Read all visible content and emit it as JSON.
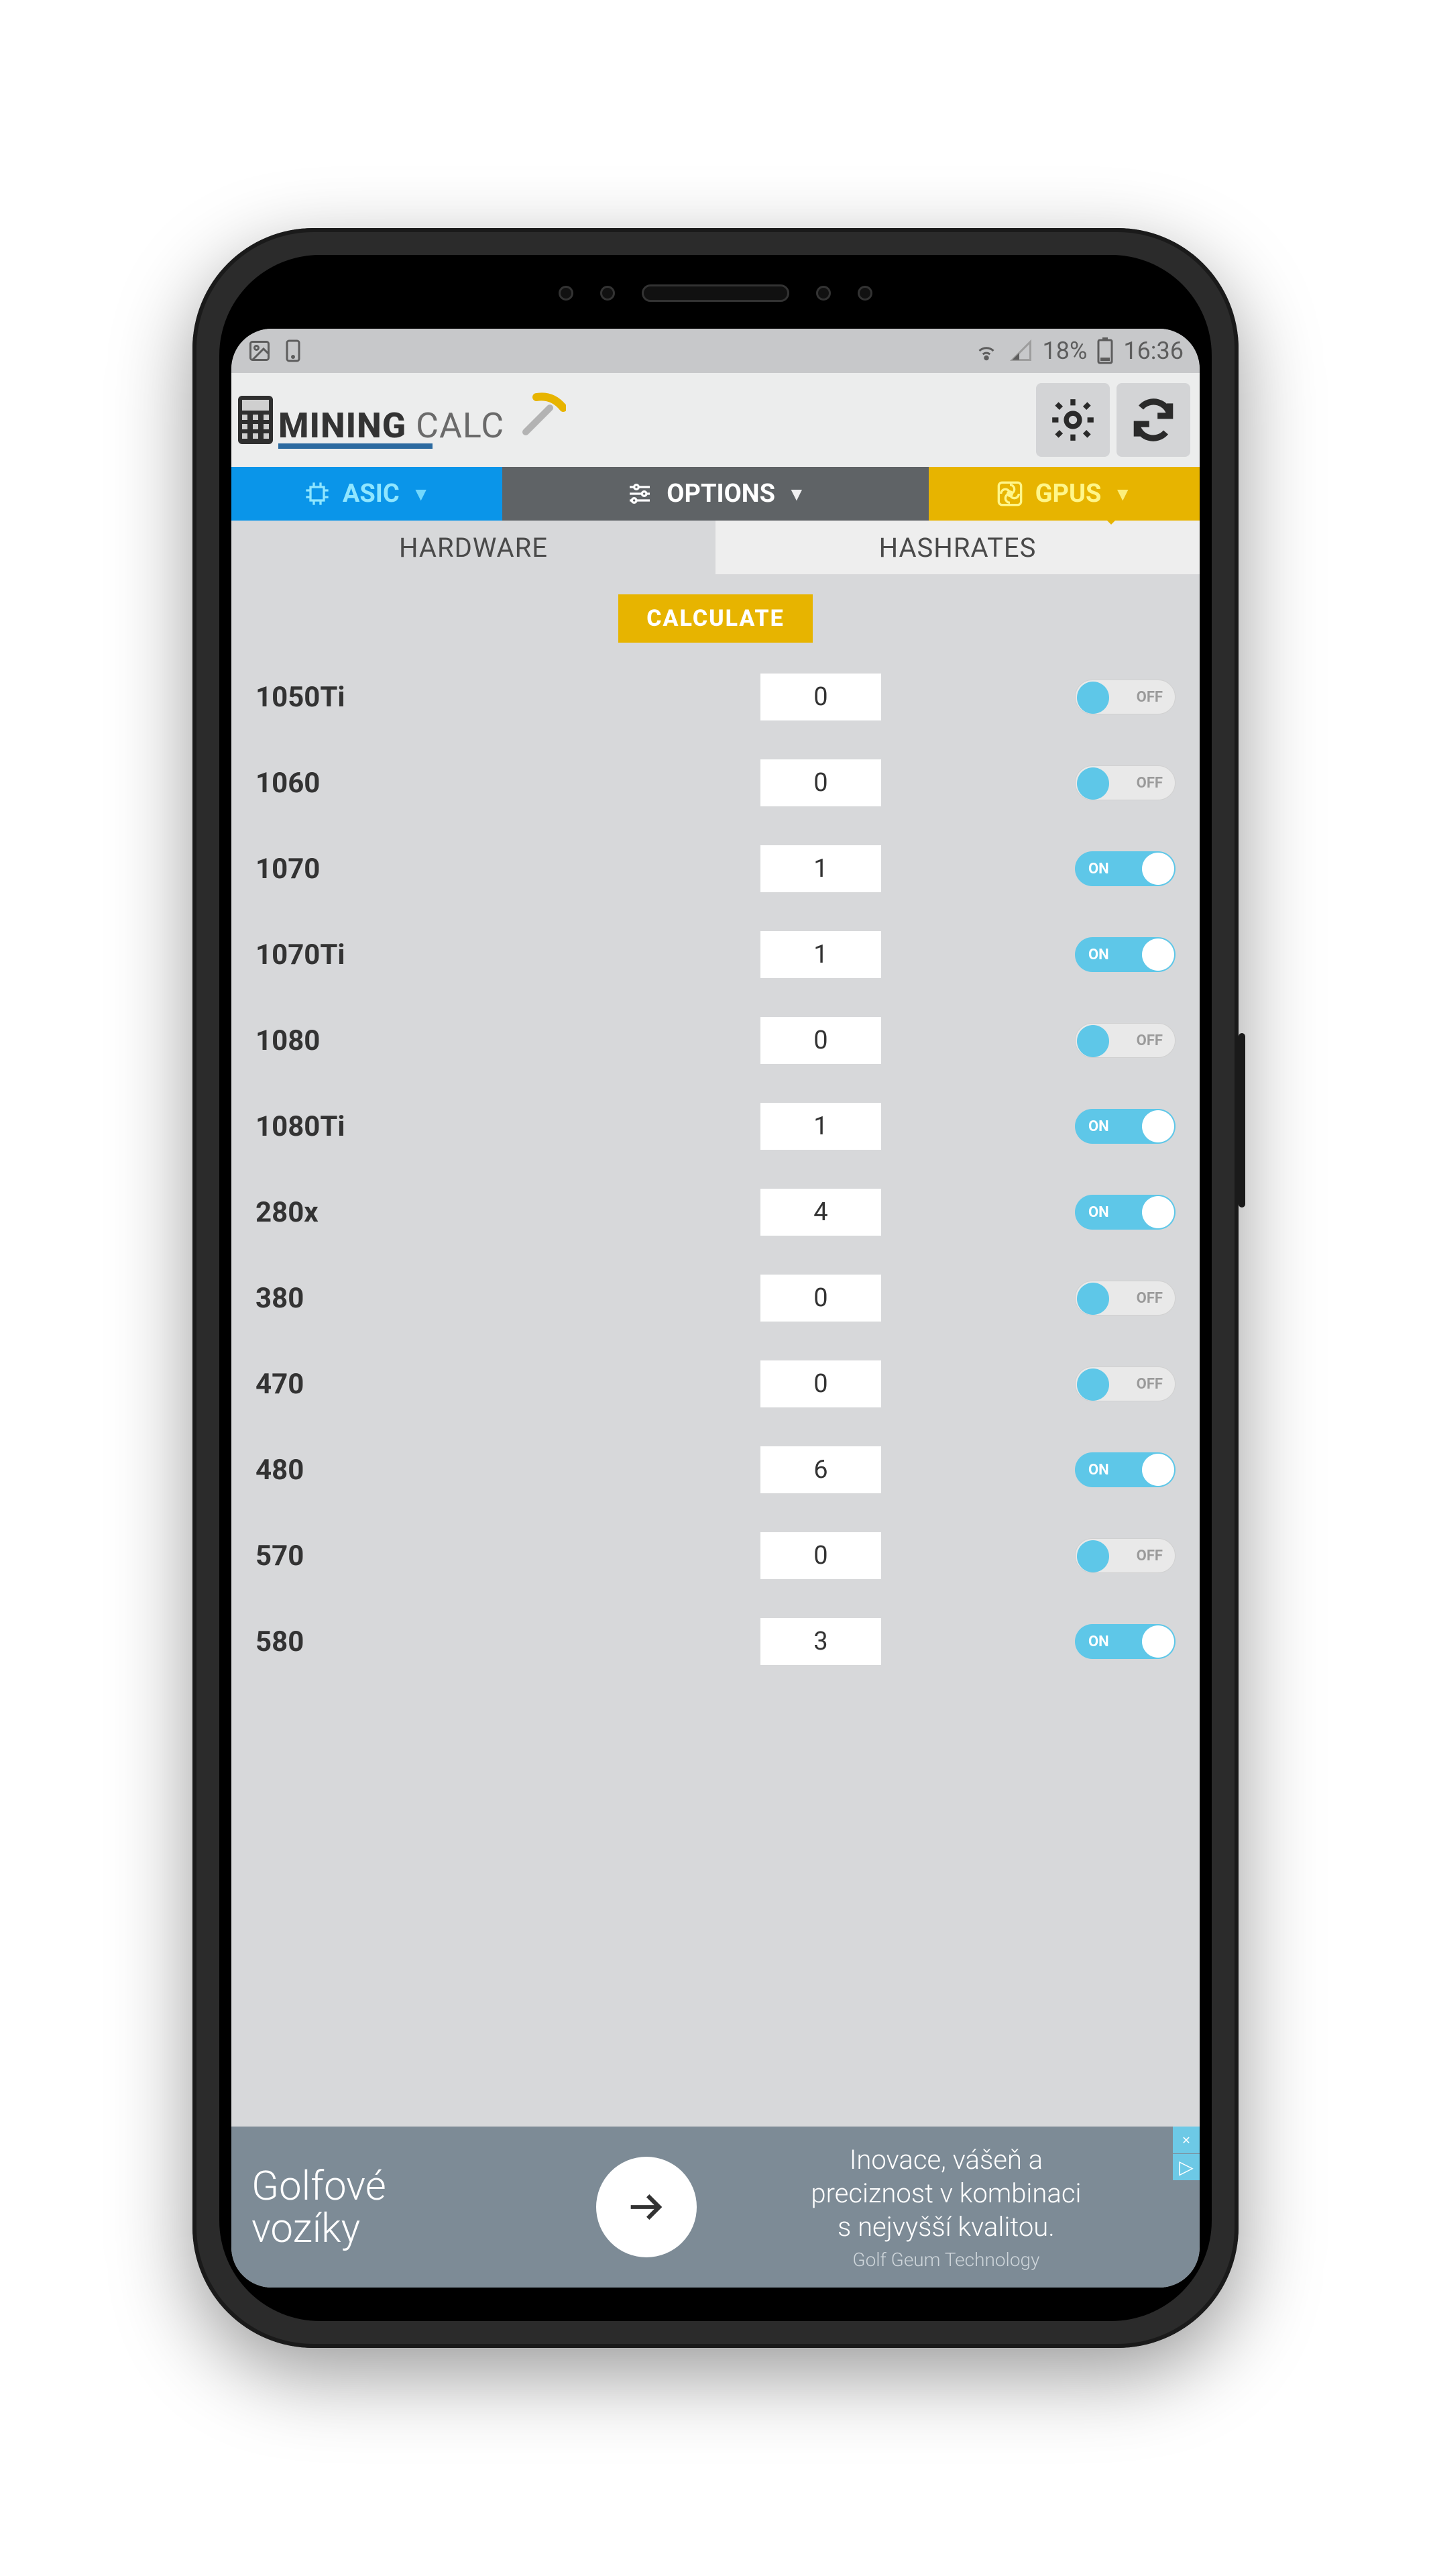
{
  "statusbar": {
    "battery_pct": "18%",
    "time": "16:36"
  },
  "header": {
    "title_bold": "MINING",
    "title_light": "CALC"
  },
  "navtabs": {
    "asic": "ASIC",
    "options": "OPTIONS",
    "gpus": "GPUS"
  },
  "subtabs": {
    "hardware": "HARDWARE",
    "hashrates": "HASHRATES"
  },
  "calculate_label": "CALCULATE",
  "toggle": {
    "on_label": "ON",
    "off_label": "OFF"
  },
  "gpus": [
    {
      "name": "1050Ti",
      "value": "0",
      "on": false
    },
    {
      "name": "1060",
      "value": "0",
      "on": false
    },
    {
      "name": "1070",
      "value": "1",
      "on": true
    },
    {
      "name": "1070Ti",
      "value": "1",
      "on": true
    },
    {
      "name": "1080",
      "value": "0",
      "on": false
    },
    {
      "name": "1080Ti",
      "value": "1",
      "on": true
    },
    {
      "name": "280x",
      "value": "4",
      "on": true
    },
    {
      "name": "380",
      "value": "0",
      "on": false
    },
    {
      "name": "470",
      "value": "0",
      "on": false
    },
    {
      "name": "480",
      "value": "6",
      "on": true
    },
    {
      "name": "570",
      "value": "0",
      "on": false
    },
    {
      "name": "580",
      "value": "3",
      "on": true
    }
  ],
  "ad": {
    "left_l1": "Golfové",
    "left_l2": "vozíky",
    "right_l1": "Inovace, vášeň a",
    "right_l2": "preciznost v kombinaci",
    "right_l3": "s nejvyšší kvalitou.",
    "brand": "Golf Geum Technology",
    "close_glyph": "✕",
    "info_glyph": "▷"
  },
  "colors": {
    "asic_bg": "#0a95e9",
    "options_bg": "#5f6366",
    "gpus_bg": "#e7b400",
    "toggle_on": "#5ec7e8",
    "screen_bg": "#d7d8da",
    "ad_bg": "#7d8b96"
  }
}
